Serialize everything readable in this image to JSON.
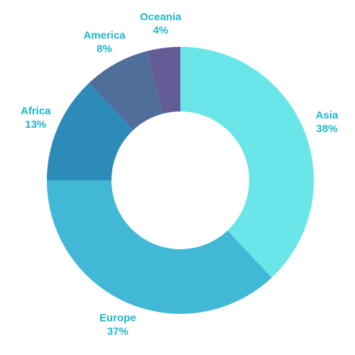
{
  "chart_data": {
    "type": "donut",
    "categories": [
      "Asia",
      "Europe",
      "Africa",
      "America",
      "Oceania"
    ],
    "values": [
      38,
      37,
      13,
      8,
      4
    ],
    "value_labels": [
      "38%",
      "37%",
      "13%",
      "8%",
      "4%"
    ],
    "colors": [
      "#6ae6e8",
      "#41b8d5",
      "#2d8bba",
      "#506e9a",
      "#635c97"
    ]
  }
}
